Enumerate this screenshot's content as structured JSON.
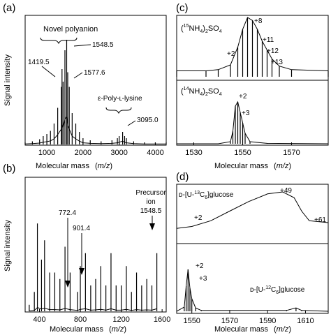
{
  "chart_data": [
    {
      "panel_label": "(a)",
      "type": "line",
      "xlabel": "Molecular mass",
      "xunit": "(m/z)",
      "ylabel": "Signal intensity",
      "xlim": [
        400,
        4300
      ],
      "x_ticks": [
        1000,
        2000,
        3000,
        4000
      ],
      "series": [
        {
          "x": [
            400,
            600,
            800,
            900,
            1000,
            1100,
            1200,
            1300,
            1400,
            1419.5,
            1450,
            1500,
            1548.5,
            1577.6,
            1620,
            1700,
            1800,
            1900,
            2000,
            2200,
            2500,
            2800,
            2950,
            3000,
            3095,
            3150,
            3200,
            3400,
            3700,
            4000,
            4300
          ],
          "y": [
            0.02,
            0.03,
            0.05,
            0.08,
            0.1,
            0.13,
            0.2,
            0.35,
            0.55,
            0.72,
            0.6,
            0.9,
            1.0,
            0.69,
            0.55,
            0.3,
            0.2,
            0.12,
            0.06,
            0.04,
            0.03,
            0.04,
            0.06,
            0.08,
            0.12,
            0.08,
            0.06,
            0.03,
            0.02,
            0.02,
            0.02
          ]
        }
      ],
      "annotations": [
        {
          "text": "Novel polyanion"
        },
        {
          "text": "1548.5",
          "x": 1548.5
        },
        {
          "text": "1419.5",
          "x": 1419.5
        },
        {
          "text": "1577.6",
          "x": 1577.6
        },
        {
          "text": "ε-Poly-ʟ-lysine"
        },
        {
          "text": "3095.0",
          "x": 3095.0
        }
      ]
    },
    {
      "panel_label": "(b)",
      "type": "line",
      "xlabel": "Molecular mass",
      "xunit": "(m/z)",
      "ylabel": "Signal intensity",
      "xlim": [
        260,
        1640
      ],
      "x_ticks": [
        400,
        800,
        1200,
        1600
      ],
      "series": [
        {
          "x": [
            300,
            350,
            380,
            420,
            450,
            500,
            550,
            600,
            650,
            700,
            772.4,
            800,
            850,
            901.4,
            950,
            1000,
            1050,
            1100,
            1150,
            1200,
            1250,
            1300,
            1350,
            1400,
            1450,
            1500,
            1548.5
          ],
          "y": [
            0.05,
            0.15,
            0.68,
            0.4,
            0.55,
            0.3,
            0.3,
            0.25,
            0.5,
            0.3,
            0.15,
            0.35,
            0.45,
            0.2,
            0.25,
            0.35,
            0.2,
            0.45,
            0.2,
            0.2,
            0.35,
            0.15,
            0.3,
            0.2,
            0.25,
            0.2,
            0.45
          ]
        }
      ],
      "annotations": [
        {
          "text": "772.4",
          "x": 772.4
        },
        {
          "text": "901.4",
          "x": 901.4
        },
        {
          "text": "Precursor ion",
          "lines": [
            "Precursor",
            "ion",
            "1548.5"
          ],
          "x": 1548.5
        }
      ]
    },
    {
      "panel_label": "(c)",
      "type": "line",
      "xlabel": "Molecular mass",
      "xunit": "(m/z)",
      "xlim": [
        1523,
        1585
      ],
      "x_ticks": [
        1530,
        1550,
        1570
      ],
      "series": [
        {
          "name_parts": [
            "(",
            "15",
            "NH",
            "4",
            ")",
            "2",
            "SO",
            "4"
          ],
          "x": [
            1523,
            1535,
            1540,
            1545,
            1548,
            1550,
            1552,
            1554,
            1556,
            1558,
            1560,
            1562,
            1565,
            1570,
            1585
          ],
          "y": [
            0.1,
            0.1,
            0.12,
            0.2,
            0.5,
            0.8,
            1.0,
            0.95,
            0.8,
            0.6,
            0.45,
            0.3,
            0.18,
            0.12,
            0.1
          ]
        },
        {
          "name_parts": [
            "(",
            "14",
            "NH",
            "4",
            ")",
            "2",
            "SO",
            "4"
          ],
          "x": [
            1523,
            1540,
            1545,
            1546,
            1547,
            1548,
            1549,
            1550,
            1551,
            1553,
            1560,
            1585
          ],
          "y": [
            0.0,
            0.0,
            0.05,
            0.3,
            0.9,
            1.0,
            0.75,
            0.5,
            0.25,
            0.05,
            0.01,
            0.0
          ]
        }
      ],
      "annotations": [
        {
          "text": "+8"
        },
        {
          "text": "+11"
        },
        {
          "text": "+12"
        },
        {
          "text": "+13"
        },
        {
          "text": "+2"
        },
        {
          "text": "+2"
        },
        {
          "text": "+3"
        }
      ]
    },
    {
      "panel_label": "(d)",
      "type": "line",
      "xlabel": "Molecular mass",
      "xunit": "(m/z)",
      "xlim": [
        1542,
        1622
      ],
      "x_ticks": [
        1550,
        1570,
        1590,
        1610
      ],
      "series": [
        {
          "name": "ᴅ-[U-13C6]glucose",
          "x": [
            1542,
            1550,
            1560,
            1570,
            1580,
            1590,
            1598,
            1604,
            1608,
            1612,
            1622
          ],
          "y": [
            0.05,
            0.1,
            0.25,
            0.5,
            0.75,
            0.95,
            1.0,
            0.85,
            0.5,
            0.25,
            0.2
          ]
        },
        {
          "name": "ᴅ-[U-12C6]glucose",
          "x": [
            1542,
            1546,
            1547,
            1548,
            1549,
            1550,
            1552,
            1555,
            1570,
            1600,
            1605,
            1608,
            1622
          ],
          "y": [
            0.0,
            0.1,
            0.6,
            1.0,
            0.55,
            0.3,
            0.08,
            0.02,
            0.02,
            0.02,
            0.08,
            0.02,
            0.0
          ]
        }
      ],
      "annotations": [
        {
          "text": "+49"
        },
        {
          "text": "+2"
        },
        {
          "text": "+61"
        },
        {
          "text": "+2"
        },
        {
          "text": "+3"
        }
      ]
    }
  ],
  "text": {
    "a_label": "(a)",
    "b_label": "(b)",
    "c_label": "(c)",
    "d_label": "(d)",
    "ylabel": "Signal intensity",
    "xlabel": "Molecular mass",
    "mz": "m/z",
    "a_novel": "Novel polyanion",
    "a_1548": "1548.5",
    "a_1419": "1419.5",
    "a_1577": "1577.6",
    "a_epsilon": "ε-Poly-ʟ-lysine",
    "a_3095": "3095.0",
    "b_772": "772.4",
    "b_901": "901.4",
    "b_precursor": "Precursor",
    "b_ion": "ion",
    "b_1548": "1548.5",
    "c_p8": "+8",
    "c_p11": "+11",
    "c_p12": "+12",
    "c_p13": "+13",
    "c_p2a": "+2",
    "c_p2b": "+2",
    "c_p3": "+3",
    "paren_open": "(",
    "paren_close": ")",
    "n15": "15",
    "n14": "14",
    "nh": "NH",
    "sub4": "4",
    "sub2": "2",
    "so": "SO",
    "d_prefix": "ᴅ-[U-",
    "d_13": "13",
    "d_12": "12",
    "d_c": "C",
    "d_6": "6",
    "d_suffix": "]glucose",
    "d_p49": "+49",
    "d_p2a": "+2",
    "d_p61": "+61",
    "d_p2b": "+2",
    "d_p3": "+3"
  }
}
